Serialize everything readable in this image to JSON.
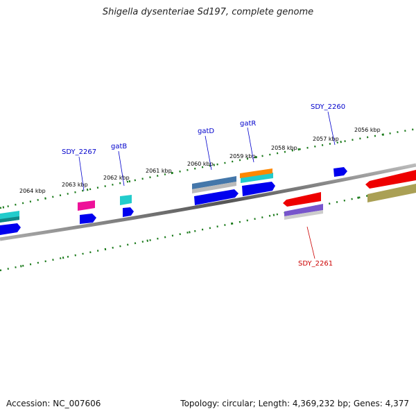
{
  "title": "Shigella dysenteriae Sd197, complete genome",
  "footer": {
    "accession_label": "Accession:",
    "accession": "NC_007606",
    "topology_label": "Topology:",
    "topology": "circular;",
    "length_label": "Length:",
    "length": "4,369,232 bp;",
    "genes_label": "Genes:",
    "genes": "4,377"
  },
  "kbp_labels": [
    "2056 kbp",
    "2057 kbp",
    "2058 kbp",
    "2059 kbp",
    "2060 kbp",
    "2061 kbp",
    "2062 kbp",
    "2063 kbp",
    "2064 kbp"
  ],
  "gene_labels": [
    {
      "text": "SDY_2260",
      "color": "#0000cc"
    },
    {
      "text": "gatR",
      "color": "#0000cc"
    },
    {
      "text": "gatD",
      "color": "#0000cc"
    },
    {
      "text": "gatB",
      "color": "#0000cc"
    },
    {
      "text": "SDY_2267",
      "color": "#0000cc"
    },
    {
      "text": "SDY_2261",
      "color": "#cc0000"
    }
  ],
  "colors": {
    "backbone": "#777777",
    "tick": "#1a7a1a",
    "forward_gene": "#0000ee",
    "cyan_gene": "#22cccc",
    "red_gene": "#ee0000",
    "magenta_gene": "#ee1199",
    "steelblue_gene": "#4477aa",
    "orange_gene": "#ff8800",
    "purple_gene": "#7755cc",
    "olive_gene": "#aaa055"
  }
}
